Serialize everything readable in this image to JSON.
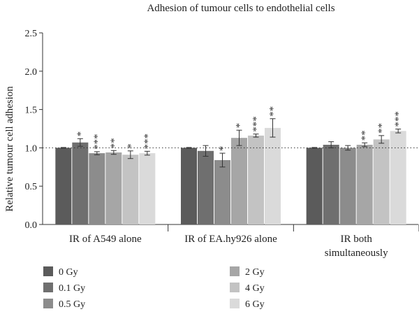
{
  "chart_data": {
    "type": "bar",
    "title": "Adhesion of tumour cells to endothelial cells",
    "xlabel": "",
    "ylabel": "Relative tumour cell adhesion",
    "ylim": [
      0,
      2.5
    ],
    "yticks": [
      "0.0",
      "0.5",
      "1.0",
      "1.5",
      "2.0",
      "2.5"
    ],
    "reference_line": 1.0,
    "categories": [
      [
        "IR of A549 alone"
      ],
      [
        "IR of EA.hy926 alone"
      ],
      [
        "IR both",
        "simultaneously"
      ]
    ],
    "series": [
      {
        "name": "0 Gy",
        "color": "#5b5b5b",
        "values": [
          1.0,
          1.0,
          1.0
        ],
        "errors": [
          0.005,
          0.005,
          0.005
        ],
        "sig": [
          "",
          "",
          ""
        ]
      },
      {
        "name": "0.1 Gy",
        "color": "#6f6f6f",
        "values": [
          1.07,
          0.96,
          1.04
        ],
        "errors": [
          0.05,
          0.07,
          0.04
        ],
        "sig": [
          "*",
          "",
          ""
        ]
      },
      {
        "name": "0.5 Gy",
        "color": "#8c8c8c",
        "values": [
          0.93,
          0.84,
          1.0
        ],
        "errors": [
          0.02,
          0.09,
          0.03
        ],
        "sig": [
          "***",
          "*",
          ""
        ]
      },
      {
        "name": "2 Gy",
        "color": "#a6a6a6",
        "values": [
          0.94,
          1.13,
          1.04
        ],
        "errors": [
          0.025,
          0.1,
          0.025
        ],
        "sig": [
          "**",
          "*",
          "**"
        ]
      },
      {
        "name": "4 Gy",
        "color": "#c3c3c3",
        "values": [
          0.91,
          1.16,
          1.11
        ],
        "errors": [
          0.05,
          0.02,
          0.05
        ],
        "sig": [
          "*",
          "***",
          "**"
        ]
      },
      {
        "name": "6 Gy",
        "color": "#dadada",
        "values": [
          0.93,
          1.26,
          1.22
        ],
        "errors": [
          0.025,
          0.12,
          0.025
        ],
        "sig": [
          "***",
          "**",
          "***"
        ]
      }
    ],
    "legend_position": "bottom-left"
  }
}
